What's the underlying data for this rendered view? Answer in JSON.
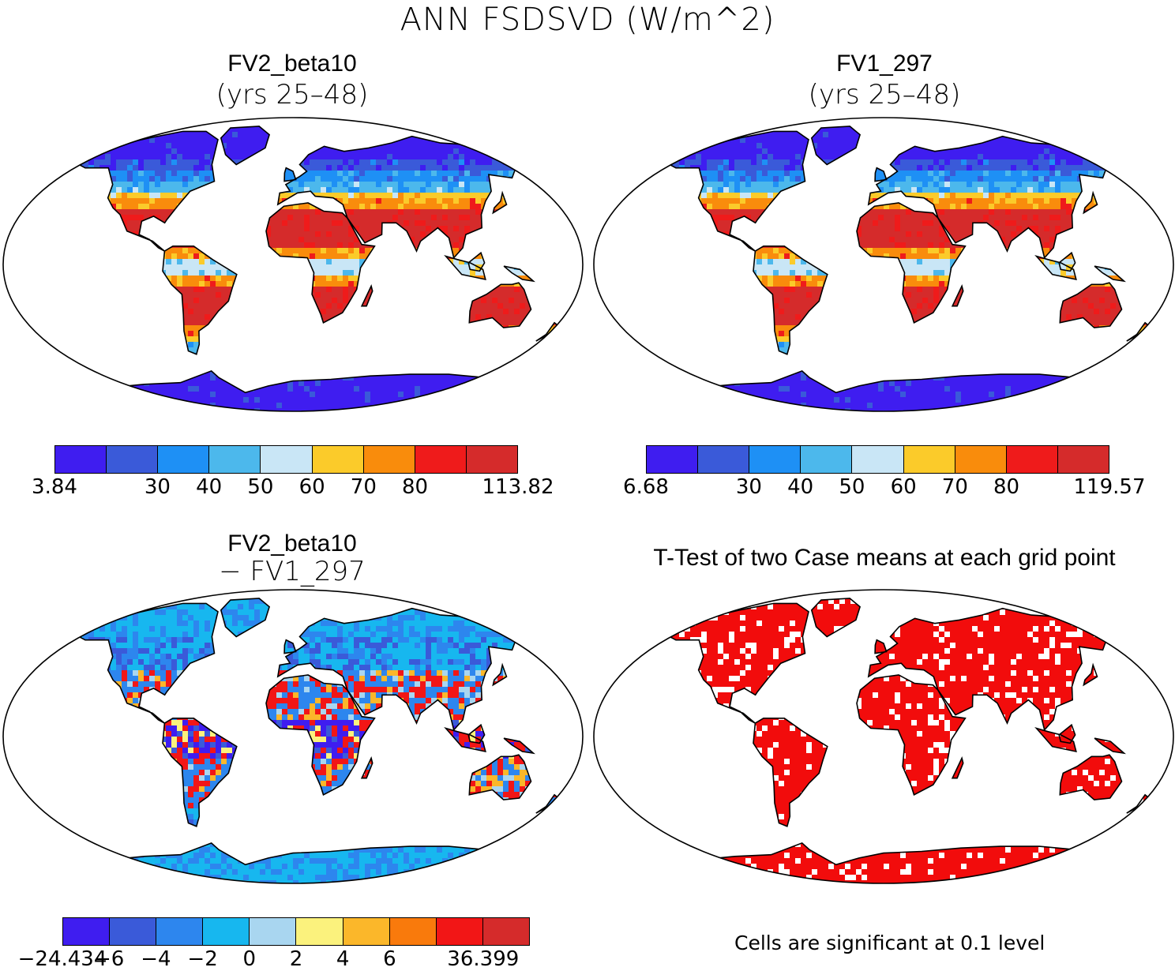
{
  "figure": {
    "title": "ANN FSDSVD (W/m^2)"
  },
  "panels": [
    {
      "id": "fv2",
      "title": "FV2_beta10",
      "subtitle": "(yrs 25–48)",
      "colorbar": {
        "colors": [
          "#3f1df0",
          "#3a5ad9",
          "#1e90f5",
          "#4cb8ec",
          "#c9e6f6",
          "#fbcb2a",
          "#f98c0c",
          "#ef1b1b",
          "#d52b2b"
        ],
        "labels": [
          "3.84",
          "",
          "30",
          "40",
          "50",
          "60",
          "70",
          "80",
          "",
          "113.82"
        ]
      }
    },
    {
      "id": "fv1",
      "title": "FV1_297",
      "subtitle": "(yrs 25–48)",
      "colorbar": {
        "colors": [
          "#3f1df0",
          "#3a5ad9",
          "#1e90f5",
          "#4cb8ec",
          "#c9e6f6",
          "#fbcb2a",
          "#f98c0c",
          "#ef1b1b",
          "#d52b2b"
        ],
        "labels": [
          "6.68",
          "",
          "30",
          "40",
          "50",
          "60",
          "70",
          "80",
          "",
          "119.57"
        ]
      }
    },
    {
      "id": "diff",
      "title": "FV2_beta10",
      "subtitle": "− FV1_297",
      "colorbar": {
        "colors": [
          "#3f1df0",
          "#3a5ad9",
          "#2d86ee",
          "#17b7ef",
          "#a9d6f0",
          "#fbf27d",
          "#fbb72a",
          "#f97a0c",
          "#f21616",
          "#d52b2b"
        ],
        "labels": [
          "−24.434",
          "−6",
          "−4",
          "−2",
          "0",
          "2",
          "4",
          "6",
          "",
          "36.399"
        ]
      }
    },
    {
      "id": "ttest",
      "title": "T-Test of two Case means at each grid point",
      "note": "Cells are significant at 0.1 level",
      "color": "#f20c0c"
    }
  ]
}
